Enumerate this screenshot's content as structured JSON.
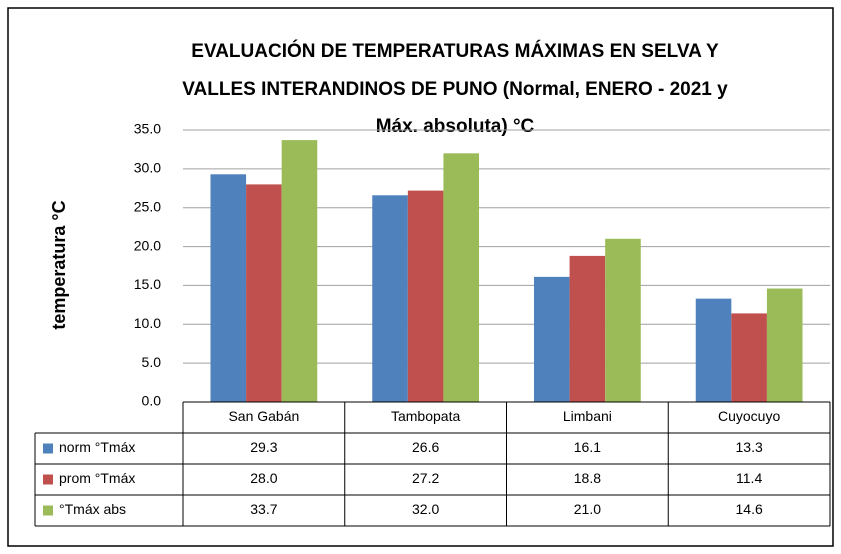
{
  "chart_data": {
    "type": "bar",
    "title": [
      "EVALUACIÓN DE TEMPERATURAS MÁXIMAS EN SELVA Y",
      "VALLES INTERANDINOS DE PUNO (Normal, ENERO - 2021 y",
      "Máx. absoluta) °C"
    ],
    "y_label": "temperatura °C",
    "categories": [
      "San Gabán",
      "Tambopata",
      "Limbani",
      "Cuyocuyo"
    ],
    "series": [
      {
        "name": "norm °Tmáx",
        "color": "#4f81bd",
        "values": [
          29.3,
          26.6,
          16.1,
          13.3
        ],
        "value_labels": [
          "29.3",
          "26.6",
          "16.1",
          "13.3"
        ]
      },
      {
        "name": "prom °Tmáx",
        "color": "#c0504d",
        "values": [
          28.0,
          27.2,
          18.8,
          11.4
        ],
        "value_labels": [
          "28.0",
          "27.2",
          "18.8",
          "11.4"
        ]
      },
      {
        "name": "°Tmáx abs",
        "color": "#9bbb59",
        "values": [
          33.7,
          32.0,
          21.0,
          14.6
        ],
        "value_labels": [
          "33.7",
          "32.0",
          "21.0",
          "14.6"
        ]
      }
    ],
    "ylim": [
      0,
      35
    ],
    "yticks": [
      {
        "value": 0,
        "label": "0.0"
      },
      {
        "value": 5,
        "label": "5.0"
      },
      {
        "value": 10,
        "label": "10.0"
      },
      {
        "value": 15,
        "label": "15.0"
      },
      {
        "value": 20,
        "label": "20.0"
      },
      {
        "value": 25,
        "label": "25.0"
      },
      {
        "value": 30,
        "label": "30.0"
      },
      {
        "value": 35,
        "label": "35.0"
      }
    ],
    "grid": true
  }
}
